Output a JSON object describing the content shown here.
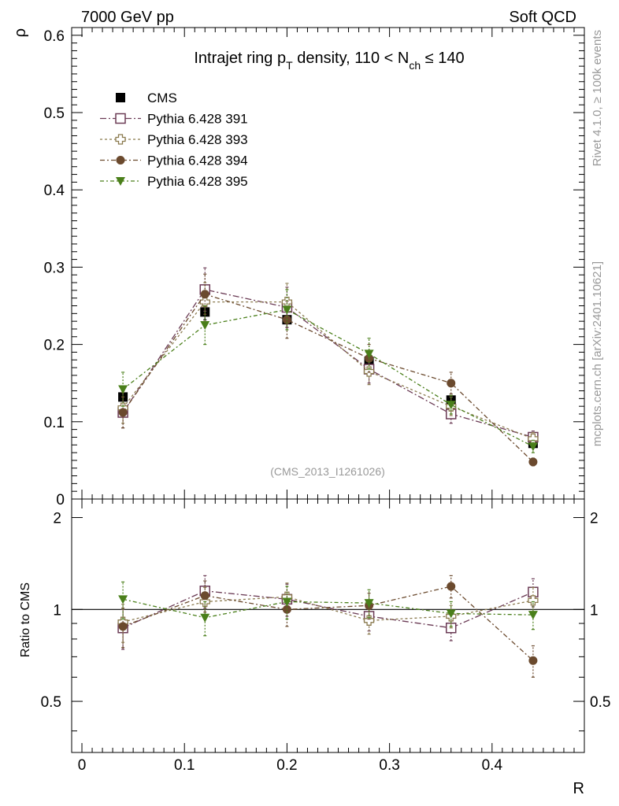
{
  "header": {
    "left": "7000 GeV pp",
    "right": "Soft QCD"
  },
  "side_labels": {
    "rivet": "Rivet 4.1.0, ≥ 100k events",
    "mcplots": "mcplots.cern.ch [arXiv:2401.10621]"
  },
  "colors": {
    "CMS": "#000000",
    "Pythia 6.428 391": "#6b3b55",
    "Pythia 6.428 393": "#8a7a4e",
    "Pythia 6.428 394": "#6b4a2e",
    "Pythia 6.428 395": "#4a7f1a"
  },
  "chart_data": [
    {
      "type": "scatter",
      "panel": "main",
      "title": "Intrajet ring pT density, 110 < Nch ≤ 140",
      "title_parts": {
        "pre": "Intrajet ring p",
        "sub1": "T",
        "mid": " density, 110 < N",
        "sub2": "ch",
        "post": " ≤ 140"
      },
      "ylabel": "ρ",
      "xlabel": "",
      "xlim": [
        -0.01,
        0.49
      ],
      "ylim": [
        0,
        0.61
      ],
      "yticks": [
        "0.1",
        "0.2",
        "0.3",
        "0.4",
        "0.5",
        "0.6"
      ],
      "ytick_values": [
        0.1,
        0.2,
        0.3,
        0.4,
        0.5,
        0.6
      ],
      "y_zero_label": "0",
      "annotation": "(CMS_2013_I1261026)",
      "x": [
        0.04,
        0.12,
        0.2,
        0.28,
        0.36,
        0.44
      ],
      "legend_position": "top-left",
      "series": [
        {
          "name": "CMS",
          "marker": "square-filled",
          "values": [
            0.132,
            0.242,
            0.232,
            0.178,
            0.128,
            0.072
          ],
          "errors": [
            0.008,
            0.01,
            0.01,
            0.008,
            0.006,
            0.005
          ]
        },
        {
          "name": "Pythia 6.428 391",
          "marker": "square-open",
          "values": [
            0.112,
            0.271,
            0.248,
            0.168,
            0.11,
            0.08
          ],
          "errors": [
            0.02,
            0.028,
            0.026,
            0.018,
            0.012,
            0.008
          ]
        },
        {
          "name": "Pythia 6.428 393",
          "marker": "cross-open",
          "values": [
            0.118,
            0.255,
            0.255,
            0.165,
            0.12,
            0.078
          ],
          "errors": [
            0.02,
            0.025,
            0.024,
            0.017,
            0.012,
            0.008
          ]
        },
        {
          "name": "Pythia 6.428 394",
          "marker": "circle-filled",
          "values": [
            0.112,
            0.265,
            0.232,
            0.182,
            0.15,
            0.048
          ],
          "errors": [
            0.02,
            0.026,
            0.024,
            0.018,
            0.014,
            0.005
          ]
        },
        {
          "name": "Pythia 6.428 395",
          "marker": "triangle-down",
          "values": [
            0.142,
            0.225,
            0.245,
            0.188,
            0.122,
            0.068
          ],
          "errors": [
            0.022,
            0.025,
            0.026,
            0.02,
            0.012,
            0.008
          ]
        }
      ]
    },
    {
      "type": "scatter",
      "panel": "ratio",
      "ylabel": "Ratio to CMS",
      "xlabel": "R",
      "xlim": [
        -0.01,
        0.49
      ],
      "ylim": [
        0.34,
        2.3
      ],
      "ylog": true,
      "yticks": [
        "0.5",
        "1",
        "2"
      ],
      "ytick_values": [
        0.5,
        1,
        2
      ],
      "xticks": [
        "0",
        "0.1",
        "0.2",
        "0.3",
        "0.4"
      ],
      "xtick_values": [
        0,
        0.1,
        0.2,
        0.3,
        0.4
      ],
      "x": [
        0.04,
        0.12,
        0.2,
        0.28,
        0.36,
        0.44
      ],
      "series": [
        {
          "name": "Pythia 6.428 391",
          "values": [
            0.87,
            1.15,
            1.08,
            0.95,
            0.87,
            1.14
          ],
          "errors": [
            0.13,
            0.14,
            0.13,
            0.1,
            0.08,
            0.12
          ]
        },
        {
          "name": "Pythia 6.428 393",
          "values": [
            0.91,
            1.06,
            1.1,
            0.92,
            0.95,
            1.07
          ],
          "errors": [
            0.13,
            0.12,
            0.12,
            0.09,
            0.08,
            0.11
          ]
        },
        {
          "name": "Pythia 6.428 394",
          "values": [
            0.88,
            1.11,
            1.0,
            1.03,
            1.19,
            0.68
          ],
          "errors": [
            0.13,
            0.13,
            0.12,
            0.1,
            0.1,
            0.08
          ]
        },
        {
          "name": "Pythia 6.428 395",
          "values": [
            1.08,
            0.94,
            1.06,
            1.05,
            0.97,
            0.96
          ],
          "errors": [
            0.15,
            0.12,
            0.13,
            0.11,
            0.09,
            0.1
          ]
        }
      ]
    }
  ]
}
